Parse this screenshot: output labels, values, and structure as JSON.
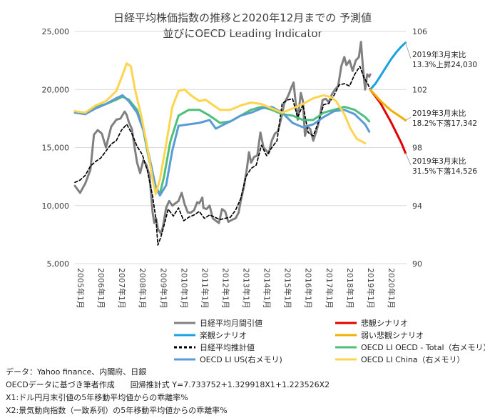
{
  "chart_data": {
    "type": "line",
    "title": "日経平均株価指数の推移と2020年12月までの 予測値",
    "subtitle": "並びにOECD Leading Indicator",
    "y_left": {
      "min": 5000,
      "max": 25000,
      "ticks": [
        "5,000",
        "10,000",
        "15,000",
        "20,000",
        "25,000"
      ],
      "tick_values": [
        5000,
        10000,
        15000,
        20000,
        25000
      ]
    },
    "y_right": {
      "min": 90,
      "max": 106,
      "ticks": [
        "90",
        "94",
        "98",
        "102",
        "106"
      ],
      "tick_values": [
        90,
        94,
        98,
        102,
        106
      ]
    },
    "x_range": [
      2005.0,
      2021.0
    ],
    "x_ticks": [
      "2005年1月",
      "2006年1月",
      "2007年1月",
      "2008年1月",
      "2009年1月",
      "2010年1月",
      "2011年1月",
      "2012年1月",
      "2013年1月",
      "2014年1月",
      "2015年1月",
      "2016年1月",
      "2017年1月",
      "2018年1月",
      "2019年1月",
      "2020年1月"
    ],
    "x_tick_values": [
      2005,
      2006,
      2007,
      2008,
      2009,
      2010,
      2011,
      2012,
      2013,
      2014,
      2015,
      2016,
      2017,
      2018,
      2019,
      2020
    ],
    "series": [
      {
        "name": "日経平均月間引値",
        "axis": "left",
        "color": "#808080",
        "width": 3,
        "dash": "",
        "x": [
          2005.0,
          2005.25,
          2005.5,
          2005.75,
          2005.92,
          2006.1,
          2006.3,
          2006.5,
          2006.75,
          2007.0,
          2007.2,
          2007.4,
          2007.5,
          2007.6,
          2007.75,
          2007.9,
          2008.0,
          2008.15,
          2008.3,
          2008.45,
          2008.6,
          2008.75,
          2008.83,
          2008.92,
          2009.0,
          2009.15,
          2009.25,
          2009.4,
          2009.55,
          2009.7,
          2009.85,
          2010.0,
          2010.15,
          2010.3,
          2010.45,
          2010.6,
          2010.75,
          2010.9,
          2011.0,
          2011.15,
          2011.2,
          2011.35,
          2011.5,
          2011.65,
          2011.8,
          2011.95,
          2012.1,
          2012.25,
          2012.4,
          2012.5,
          2012.6,
          2012.75,
          2012.9,
          2013.0,
          2013.15,
          2013.3,
          2013.4,
          2013.5,
          2013.65,
          2013.8,
          2013.95,
          2014.1,
          2014.2,
          2014.35,
          2014.5,
          2014.65,
          2014.8,
          2014.95,
          2015.1,
          2015.3,
          2015.45,
          2015.55,
          2015.65,
          2015.75,
          2015.9,
          2016.0,
          2016.1,
          2016.2,
          2016.35,
          2016.5,
          2016.65,
          2016.8,
          2016.95,
          2017.1,
          2017.25,
          2017.4,
          2017.55,
          2017.7,
          2017.85,
          2018.0,
          2018.1,
          2018.25,
          2018.4,
          2018.55,
          2018.7,
          2018.8,
          2018.9,
          2019.0,
          2019.1,
          2019.2,
          2019.25
        ],
        "y": [
          11700,
          11100,
          11900,
          13100,
          16100,
          16500,
          16200,
          15000,
          16800,
          17400,
          17500,
          18100,
          17800,
          17200,
          16600,
          14800,
          13700,
          12800,
          13900,
          13500,
          12600,
          9400,
          8500,
          8900,
          8000,
          7600,
          8200,
          9800,
          10400,
          10000,
          10200,
          10400,
          11100,
          10100,
          9400,
          9400,
          9600,
          10300,
          10200,
          10700,
          9800,
          9700,
          10000,
          8900,
          8700,
          8500,
          9700,
          9500,
          8600,
          8700,
          8800,
          8900,
          9400,
          10400,
          11600,
          13200,
          14600,
          13700,
          14200,
          14300,
          16300,
          15000,
          14800,
          14500,
          15600,
          16200,
          16400,
          17500,
          18800,
          19500,
          20200,
          20600,
          18900,
          17400,
          19700,
          19000,
          16000,
          16800,
          16600,
          15600,
          16400,
          17400,
          19100,
          19200,
          18900,
          19600,
          20000,
          20300,
          22000,
          22800,
          22100,
          22500,
          21600,
          22500,
          22800,
          24100,
          21800,
          20000,
          21300,
          21100,
          21300
        ]
      },
      {
        "name": "日経平均推計値",
        "axis": "left",
        "color": "#000000",
        "width": 1.7,
        "dash": "4,3",
        "x": [
          2005.0,
          2005.25,
          2005.5,
          2005.75,
          2006.0,
          2006.25,
          2006.5,
          2006.75,
          2007.0,
          2007.25,
          2007.5,
          2007.75,
          2008.0,
          2008.25,
          2008.5,
          2008.75,
          2008.92,
          2009.0,
          2009.15,
          2009.3,
          2009.5,
          2009.75,
          2010.0,
          2010.25,
          2010.5,
          2010.75,
          2011.0,
          2011.25,
          2011.5,
          2011.75,
          2012.0,
          2012.25,
          2012.5,
          2012.75,
          2013.0,
          2013.25,
          2013.5,
          2013.75,
          2014.0,
          2014.25,
          2014.5,
          2014.75,
          2015.0,
          2015.25,
          2015.5,
          2015.75,
          2016.0,
          2016.25,
          2016.5,
          2016.75,
          2017.0,
          2017.25,
          2017.5,
          2017.75,
          2018.0,
          2018.25,
          2018.5,
          2018.75,
          2018.95,
          2019.1,
          2019.25
        ],
        "y": [
          12000,
          12200,
          12600,
          13400,
          13800,
          14100,
          14700,
          15300,
          15600,
          16500,
          17000,
          16200,
          15100,
          14400,
          13000,
          10800,
          8700,
          6600,
          7300,
          8300,
          9700,
          9100,
          9800,
          8700,
          9000,
          9200,
          9500,
          8900,
          9200,
          9000,
          8800,
          8900,
          9000,
          9600,
          10600,
          12500,
          13200,
          13500,
          15200,
          14300,
          15000,
          15600,
          18800,
          19100,
          19200,
          17600,
          18700,
          16300,
          16000,
          17200,
          18700,
          18800,
          19500,
          20400,
          20500,
          20300,
          21300,
          22000,
          21000,
          20600,
          20000
        ]
      },
      {
        "name": "楽観シナリオ",
        "axis": "left",
        "color": "#1ba1e2",
        "width": 3,
        "dash": "",
        "x": [
          2019.25,
          2019.5,
          2019.75,
          2020.0,
          2020.25,
          2020.5,
          2020.75,
          2020.95
        ],
        "y": [
          20000,
          20500,
          21200,
          21900,
          22600,
          23200,
          23700,
          24030
        ]
      },
      {
        "name": "悲観シナリオ",
        "axis": "left",
        "color": "#e00000",
        "width": 3,
        "dash": "",
        "x": [
          2019.25,
          2019.5,
          2019.75,
          2020.0,
          2020.25,
          2020.5,
          2020.75,
          2020.95
        ],
        "y": [
          20000,
          19400,
          18800,
          18000,
          17200,
          16300,
          15400,
          14526
        ]
      },
      {
        "name": "弱い悲観シナリオ",
        "axis": "left",
        "color": "#f0b000",
        "width": 3,
        "dash": "",
        "x": [
          2019.25,
          2019.5,
          2019.75,
          2020.0,
          2020.25,
          2020.5,
          2020.75,
          2020.95
        ],
        "y": [
          20000,
          19500,
          19000,
          18600,
          18200,
          17900,
          17600,
          17342
        ]
      },
      {
        "name": "OECD LI OECD - Total（右メモリ）",
        "axis": "right",
        "color": "#4cbf7a",
        "width": 3,
        "dash": "",
        "x": [
          2005.0,
          2005.5,
          2006.0,
          2006.5,
          2007.0,
          2007.3,
          2007.6,
          2008.0,
          2008.3,
          2008.6,
          2008.9,
          2009.1,
          2009.3,
          2009.6,
          2010.0,
          2010.5,
          2011.0,
          2011.5,
          2012.0,
          2012.5,
          2013.0,
          2013.5,
          2014.0,
          2014.5,
          2015.0,
          2015.5,
          2016.0,
          2016.5,
          2017.0,
          2017.5,
          2018.0,
          2018.5,
          2019.0,
          2019.2
        ],
        "y": [
          100.5,
          100.3,
          100.8,
          101.0,
          101.3,
          101.5,
          101.3,
          100.6,
          99.2,
          97.0,
          95.3,
          94.8,
          96.0,
          98.4,
          100.2,
          100.6,
          100.6,
          100.2,
          99.7,
          99.8,
          100.2,
          100.6,
          100.8,
          100.6,
          100.3,
          100.2,
          99.9,
          99.9,
          100.4,
          100.6,
          100.8,
          100.6,
          100.1,
          99.8
        ]
      },
      {
        "name": "OECD LI US(右メモリ)",
        "axis": "right",
        "color": "#5b9bd5",
        "width": 3,
        "dash": "",
        "x": [
          2005.0,
          2005.5,
          2006.0,
          2006.5,
          2007.0,
          2007.3,
          2007.6,
          2008.0,
          2008.3,
          2008.6,
          2008.9,
          2009.1,
          2009.4,
          2009.7,
          2010.0,
          2010.5,
          2011.0,
          2011.5,
          2011.8,
          2012.2,
          2012.5,
          2013.0,
          2013.5,
          2014.0,
          2014.5,
          2015.0,
          2015.5,
          2016.0,
          2016.5,
          2017.0,
          2017.5,
          2018.0,
          2018.5,
          2019.0,
          2019.2
        ],
        "y": [
          100.4,
          100.3,
          100.7,
          101.0,
          101.4,
          101.6,
          101.2,
          100.4,
          99.2,
          97.3,
          95.3,
          94.7,
          95.4,
          97.8,
          99.5,
          99.6,
          99.7,
          99.9,
          99.3,
          99.6,
          99.8,
          100.2,
          100.4,
          100.7,
          100.8,
          100.4,
          99.7,
          99.4,
          99.6,
          100.1,
          100.5,
          100.6,
          100.3,
          99.6,
          99.1
        ]
      },
      {
        "name": "OECD LI China（右メモリ）",
        "axis": "right",
        "color": "#ffd54f",
        "width": 3,
        "dash": "",
        "x": [
          2005.0,
          2005.5,
          2006.0,
          2006.5,
          2007.0,
          2007.3,
          2007.5,
          2007.7,
          2007.9,
          2008.2,
          2008.5,
          2008.75,
          2008.9,
          2009.1,
          2009.4,
          2009.7,
          2010.0,
          2010.3,
          2010.6,
          2011.0,
          2011.3,
          2011.6,
          2012.0,
          2012.5,
          2013.0,
          2013.5,
          2014.0,
          2014.5,
          2015.0,
          2015.5,
          2016.0,
          2016.5,
          2017.0,
          2017.3,
          2017.6,
          2018.0,
          2018.3,
          2018.6,
          2019.0
        ],
        "y": [
          100.5,
          100.4,
          100.9,
          101.2,
          101.9,
          103.0,
          103.8,
          103.6,
          102.0,
          100.2,
          98.0,
          95.8,
          94.8,
          95.8,
          98.2,
          100.8,
          101.9,
          102.0,
          101.6,
          101.2,
          101.3,
          101.0,
          100.6,
          100.6,
          100.9,
          101.1,
          101.0,
          100.7,
          100.4,
          100.7,
          101.0,
          101.4,
          101.6,
          101.5,
          101.2,
          100.3,
          99.3,
          98.6,
          98.3
        ]
      }
    ],
    "annotations": [
      {
        "lines": [
          "2019年3月末比",
          "13.3%上昇24,030"
        ],
        "anchor_x": 2020.95,
        "anchor_y": 24030
      },
      {
        "lines": [
          "2019年3月末比",
          "18.2%下落17,342"
        ],
        "anchor_x": 2020.95,
        "anchor_y": 17342
      },
      {
        "lines": [
          "2019年3月末比",
          "31.5%下落14,526"
        ],
        "anchor_x": 2020.95,
        "anchor_y": 14526
      }
    ],
    "legend": [
      {
        "label": "日経平均月間引値",
        "color": "#808080",
        "dash": ""
      },
      {
        "label": "悲観シナリオ",
        "color": "#e00000",
        "dash": ""
      },
      {
        "label": "楽観シナリオ",
        "color": "#1ba1e2",
        "dash": ""
      },
      {
        "label": "弱い悲観シナリオ",
        "color": "#f0b000",
        "dash": ""
      },
      {
        "label": "日経平均推計値",
        "color": "#000000",
        "dash": "4,3"
      },
      {
        "label": "OECD LI OECD - Total（右メモリ）",
        "color": "#4cbf7a",
        "dash": ""
      },
      {
        "label": "OECD LI US(右メモリ)",
        "color": "#5b9bd5",
        "dash": ""
      },
      {
        "label": "OECD LI China（右メモリ）",
        "color": "#ffd54f",
        "dash": ""
      }
    ]
  },
  "footer": {
    "source": "データ：Yahoo finance、内閣府、日銀",
    "method": "OECDデータに基づき筆者作成　　回帰推計式 Y=7.733752+1.329918X1+1.223526X2",
    "x1": "X1:ドル円月末引値の5年移動平均値からの乖離率%",
    "x2": "X2:景気動向指数（一致系列）の5年移動平均値からの乖離率%"
  }
}
